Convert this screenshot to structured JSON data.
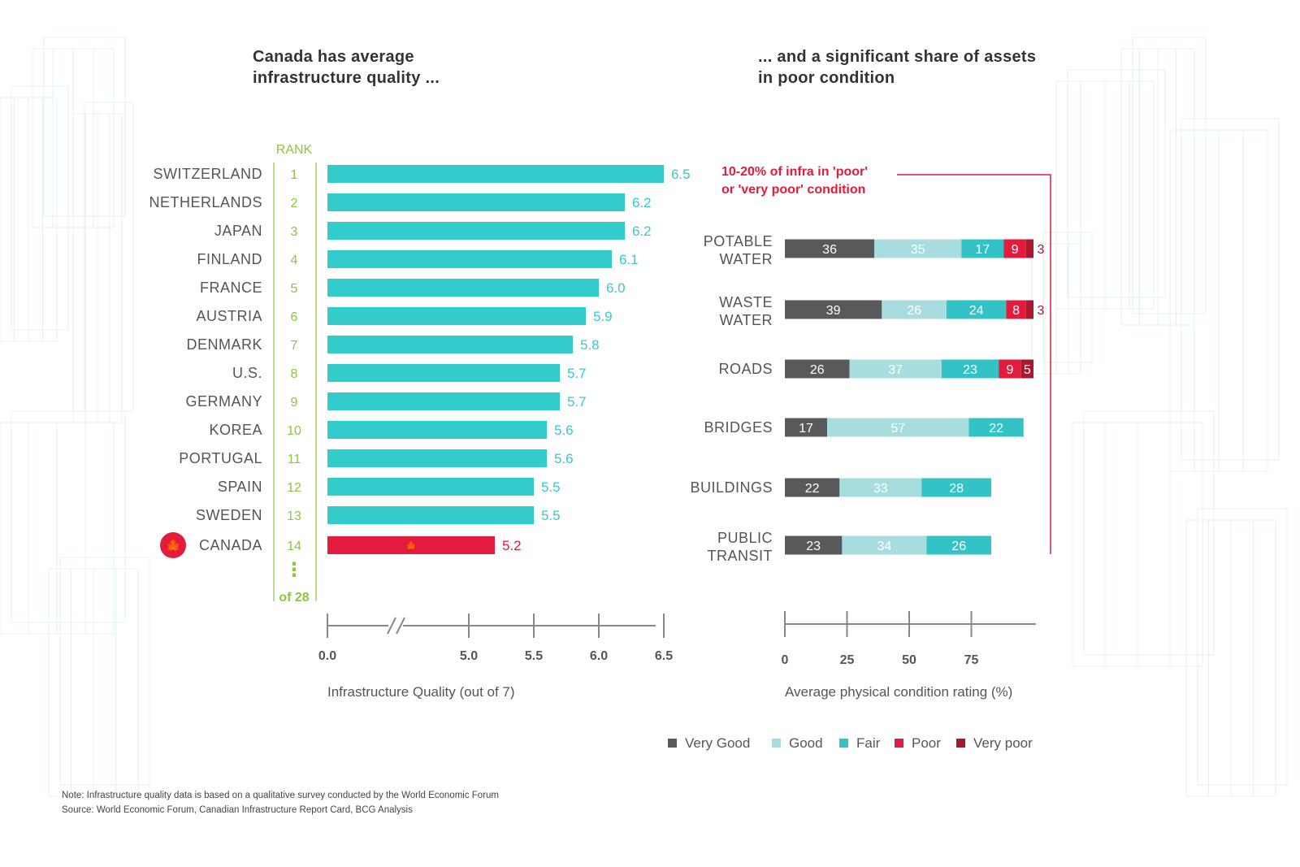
{
  "colors": {
    "bar": "#33cccc",
    "canada": "#e31c3d",
    "rank": "#8cc63f",
    "label": "#555555",
    "very_good": "#58595b",
    "good": "#a8dde0",
    "fair": "#33c2c6",
    "poor": "#e31c3d",
    "very_poor": "#a6192e",
    "axis": "#888888"
  },
  "titles": {
    "left": "Canada has average infrastructure quality ...",
    "right": "... and a significant share of assets in poor condition"
  },
  "footer": {
    "note": "Note: Infrastructure quality data is based on a qualitative survey conducted by the World Economic Forum",
    "source": "Source: World Economic Forum, Canadian Infrastructure Report Card, BCG Analysis"
  },
  "chart_data": [
    {
      "type": "bar",
      "orientation": "horizontal",
      "title": "Canada has average infrastructure quality ...",
      "rank_header": "RANK",
      "rank_total": "of 28",
      "rank_ellipsis": "⋮",
      "categories": [
        "SWITZERLAND",
        "NETHERLANDS",
        "JAPAN",
        "FINLAND",
        "FRANCE",
        "AUSTRIA",
        "DENMARK",
        "U.S.",
        "GERMANY",
        "KOREA",
        "PORTUGAL",
        "SPAIN",
        "SWEDEN",
        "CANADA"
      ],
      "ranks": [
        "1",
        "2",
        "3",
        "4",
        "5",
        "6",
        "7",
        "8",
        "9",
        "10",
        "11",
        "12",
        "13",
        "14"
      ],
      "values": [
        6.5,
        6.2,
        6.2,
        6.1,
        6.0,
        5.9,
        5.8,
        5.7,
        5.7,
        5.6,
        5.6,
        5.5,
        5.5,
        5.2
      ],
      "value_labels": [
        "6.5",
        "6.2",
        "6.2",
        "6.1",
        "6.0",
        "5.9",
        "5.8",
        "5.7",
        "5.7",
        "5.6",
        "5.6",
        "5.5",
        "5.5",
        "5.2"
      ],
      "highlight": "CANADA",
      "xlabel": "Infrastructure Quality (out of 7)",
      "xticks": [
        0.0,
        5.0,
        5.5,
        6.0,
        6.5
      ],
      "xtick_labels": [
        "0.0",
        "5.0",
        "5.5",
        "6.0",
        "6.5"
      ],
      "axis_break": [
        0.0,
        4.5
      ],
      "xlim": [
        4.5,
        6.5
      ]
    },
    {
      "type": "bar",
      "orientation": "horizontal",
      "stacked": true,
      "title": "... and a significant share of assets in poor condition",
      "annotation": "10-20% of infra in 'poor' or 'very poor' condition",
      "categories": [
        [
          "POTABLE",
          "WATER"
        ],
        [
          "WASTE",
          "WATER"
        ],
        [
          "ROADS"
        ],
        [
          "BRIDGES"
        ],
        [
          "BUILDINGS"
        ],
        [
          "PUBLIC",
          "TRANSIT"
        ]
      ],
      "series": [
        {
          "name": "Very Good",
          "values": [
            36,
            39,
            26,
            17,
            22,
            23
          ]
        },
        {
          "name": "Good",
          "values": [
            35,
            26,
            37,
            57,
            33,
            34
          ]
        },
        {
          "name": "Fair",
          "values": [
            17,
            24,
            23,
            22,
            28,
            26
          ]
        },
        {
          "name": "Poor",
          "values": [
            9,
            8,
            9,
            null,
            null,
            null
          ]
        },
        {
          "name": "Very poor",
          "values": [
            3,
            3,
            5,
            null,
            null,
            null
          ]
        }
      ],
      "xlabel": "Average physical condition rating (%)",
      "xticks": [
        0,
        25,
        50,
        75
      ],
      "xtick_labels": [
        "0",
        "25",
        "50",
        "75"
      ],
      "xlim": [
        0,
        100
      ],
      "legend": [
        "Very Good",
        "Good",
        "Fair",
        "Poor",
        "Very poor"
      ],
      "legend_position": "bottom"
    }
  ]
}
